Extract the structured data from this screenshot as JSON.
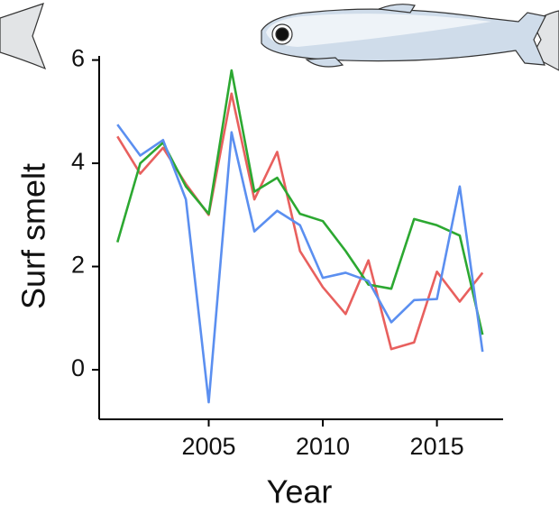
{
  "chart_data": {
    "type": "line",
    "x_label": "Year",
    "y_label": "Surf smelt",
    "x": [
      2001,
      2002,
      2003,
      2004,
      2005,
      2006,
      2007,
      2008,
      2009,
      2010,
      2011,
      2012,
      2013,
      2014,
      2015,
      2016,
      2017
    ],
    "series": [
      {
        "color": "#e8605e",
        "values": [
          4.52,
          3.8,
          4.3,
          3.6,
          3.0,
          5.35,
          3.3,
          4.22,
          2.3,
          1.6,
          1.08,
          2.12,
          0.4,
          0.53,
          1.9,
          1.32,
          1.88
        ]
      },
      {
        "color": "#2ca831",
        "values": [
          2.47,
          4.0,
          4.4,
          3.55,
          3.02,
          5.8,
          3.45,
          3.72,
          3.02,
          2.88,
          2.3,
          1.65,
          1.57,
          2.92,
          2.8,
          2.6,
          0.68
        ]
      },
      {
        "color": "#5b8ff0",
        "values": [
          4.75,
          4.15,
          4.45,
          3.3,
          -0.63,
          4.6,
          2.68,
          3.08,
          2.8,
          1.78,
          1.88,
          1.72,
          0.92,
          1.35,
          1.37,
          3.55,
          0.35
        ]
      }
    ],
    "xlim": [
      2000.2,
      2017.9
    ],
    "xticks": [
      2005,
      2010,
      2015
    ],
    "ylim": [
      -0.96,
      6.08
    ],
    "yticks": [
      0,
      2,
      4,
      6
    ]
  }
}
